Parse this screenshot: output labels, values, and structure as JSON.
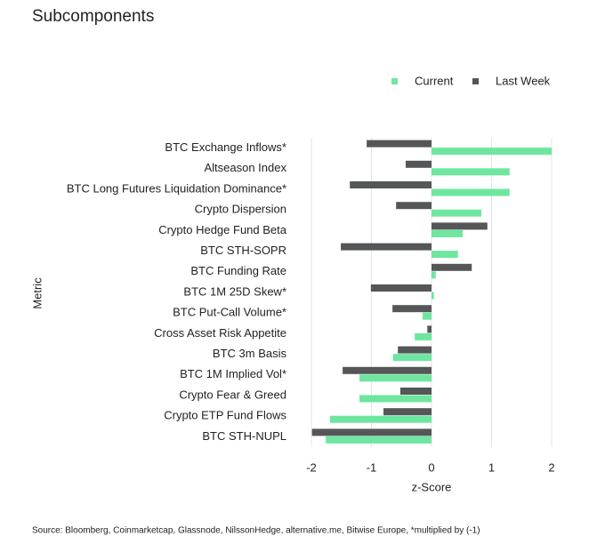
{
  "chart_data": {
    "type": "hbar",
    "title": "Subcomponents",
    "x_label": "z-Score",
    "y_label": "Metric",
    "source": "Source: Bloomberg, Coinmarketcap, Glassnode, NilssonHedge, alternative.me, Bitwise Europe, *multiplied by (-1)",
    "categories": [
      "BTC Exchange Inflows*",
      "Altseason Index",
      "BTC Long Futures Liquidation Dominance*",
      "Crypto Dispersion",
      "Crypto Hedge Fund Beta",
      "BTC STH-SOPR",
      "BTC Funding Rate",
      "BTC 1M 25D Skew*",
      "BTC Put-Call Volume*",
      "Cross Asset Risk Appetite",
      "BTC 3m Basis",
      "BTC 1M Implied Vol*",
      "Crypto Fear & Greed",
      "Crypto ETP Fund Flows",
      "BTC STH-NUPL"
    ],
    "series": [
      {
        "name": "Current",
        "color": "#6ee6a0",
        "values": [
          2.0,
          1.3,
          1.3,
          0.83,
          0.52,
          0.44,
          0.07,
          0.04,
          -0.15,
          -0.28,
          -0.64,
          -1.2,
          -1.2,
          -1.69,
          -1.76
        ]
      },
      {
        "name": "Last Week",
        "color": "#545658",
        "values": [
          -1.08,
          -0.43,
          -1.36,
          -0.59,
          0.93,
          -1.51,
          0.67,
          -1.01,
          -0.65,
          -0.07,
          -0.56,
          -1.48,
          -0.52,
          -0.8,
          -1.99
        ]
      }
    ],
    "xlim": [
      -2.2,
      2.2
    ],
    "xticks": [
      -2,
      -1,
      0,
      1,
      2
    ],
    "grid": true,
    "legend": "top-right"
  }
}
